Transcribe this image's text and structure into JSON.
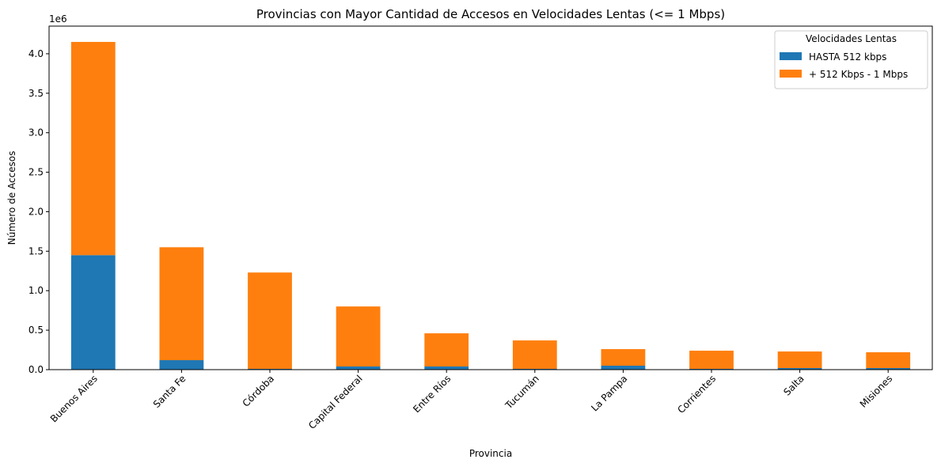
{
  "chart_data": {
    "type": "bar",
    "stacked": true,
    "title": "Provincias con Mayor Cantidad de Accesos en Velocidades Lentas (<= 1 Mbps)",
    "xlabel": "Provincia",
    "ylabel": "Número de Accesos",
    "y_offset_label": "1e6",
    "ylim": [
      0,
      4.35
    ],
    "y_ticks": [
      0.0,
      0.5,
      1.0,
      1.5,
      2.0,
      2.5,
      3.0,
      3.5,
      4.0
    ],
    "y_tick_labels": [
      "0.0",
      "0.5",
      "1.0",
      "1.5",
      "2.0",
      "2.5",
      "3.0",
      "3.5",
      "4.0"
    ],
    "grid": false,
    "legend_position": "top-right",
    "legend_title": "Velocidades Lentas",
    "categories": [
      "Buenos Aires",
      "Santa Fe",
      "Córdoba",
      "Capital Federal",
      "Entre Ríos",
      "Tucumán",
      "La Pampa",
      "Corrientes",
      "Salta",
      "Misiones"
    ],
    "series": [
      {
        "name": "HASTA 512 kbps",
        "color": "#1f77b4",
        "values": [
          1.45,
          0.12,
          0.01,
          0.04,
          0.04,
          0.01,
          0.05,
          0.01,
          0.02,
          0.02
        ]
      },
      {
        "name": "+ 512 Kbps - 1 Mbps",
        "color": "#ff7f0e",
        "values": [
          2.7,
          1.43,
          1.22,
          0.76,
          0.42,
          0.36,
          0.21,
          0.23,
          0.21,
          0.2
        ]
      }
    ]
  }
}
